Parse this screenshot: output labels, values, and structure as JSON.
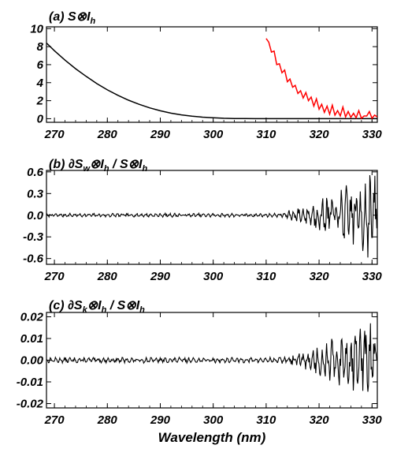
{
  "chart_data": [
    {
      "type": "line",
      "title": {
        "lead": "(a) S",
        "op": "⊗",
        "var": "I",
        "sub": "h"
      },
      "xlim": [
        268.5,
        331
      ],
      "ylim": [
        -0.4,
        10.2
      ],
      "xticks": [
        "270",
        "280",
        "290",
        "300",
        "310",
        "320",
        "330"
      ],
      "yticks": [
        "0",
        "2",
        "4",
        "6",
        "8",
        "10"
      ],
      "series": [
        {
          "color": "#000000",
          "x": [
            268.5,
            270,
            272,
            274,
            276,
            278,
            280,
            282,
            284,
            286,
            288,
            290,
            292,
            294,
            296,
            298,
            300,
            302,
            304,
            306,
            308,
            310,
            312,
            316,
            320,
            325,
            331
          ],
          "y": [
            8.4,
            7.55,
            6.5,
            5.55,
            4.7,
            3.9,
            3.2,
            2.6,
            2.05,
            1.6,
            1.2,
            0.88,
            0.62,
            0.42,
            0.28,
            0.17,
            0.1,
            0.05,
            0.02,
            0.01,
            0.0,
            0.0,
            0.0,
            0.0,
            0.0,
            0.0,
            0.0
          ]
        },
        {
          "color": "#ff0000",
          "x": [
            310,
            310.5,
            311,
            311.5,
            312,
            312.5,
            313,
            313.5,
            314,
            314.5,
            315,
            315.5,
            316,
            316.5,
            317,
            317.5,
            318,
            318.5,
            319,
            319.5,
            320,
            320.5,
            321,
            321.5,
            322,
            322.5,
            323,
            323.5,
            324,
            324.5,
            325,
            325.5,
            326,
            326.5,
            327,
            327.5,
            328,
            328.5,
            329,
            329.5,
            330,
            330.5,
            331
          ],
          "y": [
            8.9,
            8.5,
            7.4,
            7.5,
            6.0,
            6.1,
            5.1,
            5.4,
            4.1,
            4.4,
            3.5,
            3.7,
            2.8,
            3.1,
            2.3,
            2.9,
            2.0,
            2.4,
            1.4,
            2.2,
            1.05,
            1.6,
            0.7,
            1.4,
            0.5,
            1.5,
            0.4,
            0.9,
            0.3,
            1.3,
            0.2,
            0.8,
            0.15,
            0.6,
            0.1,
            0.9,
            0.05,
            0.3,
            0.3,
            0.8,
            0.05,
            0.4,
            0.2
          ]
        }
      ]
    },
    {
      "type": "line",
      "title": {
        "lead": "(b) ∂S",
        "sub1": "w",
        "op": "⊗",
        "var": "I",
        "sub2": "h",
        "tail": " / S",
        "op2": "⊗",
        "var2": "I",
        "sub3": "h"
      },
      "xlim": [
        268.5,
        331
      ],
      "ylim": [
        -0.68,
        0.62
      ],
      "xticks": [
        "270",
        "280",
        "290",
        "300",
        "310",
        "320",
        "330"
      ],
      "yticks": [
        "0.6",
        "0.3",
        "0.0",
        "-0.3",
        "-0.6"
      ],
      "ytick_values": [
        0.6,
        0.3,
        0.0,
        -0.3,
        -0.6
      ],
      "noise": {
        "base": 0.025,
        "growth_start": 312,
        "end_amp": 0.6,
        "period": 0.9,
        "seed": 7
      }
    },
    {
      "type": "line",
      "title": {
        "lead": "(c) ∂S",
        "sub1": "k",
        "op": "⊗",
        "var": "I",
        "sub2": "h",
        "tail": " / S",
        "op2": "⊗",
        "var2": "I",
        "sub3": "h"
      },
      "xlim": [
        268.5,
        331
      ],
      "ylim": [
        -0.022,
        0.022
      ],
      "xticks": [
        "270",
        "280",
        "290",
        "300",
        "310",
        "320",
        "330"
      ],
      "yticks": [
        "0.02",
        "0.01",
        "0.00",
        "-0.01",
        "-0.02"
      ],
      "ytick_values": [
        0.02,
        0.01,
        0.0,
        -0.01,
        -0.02
      ],
      "xlabel": "Wavelength (nm)",
      "noise": {
        "base": 0.0012,
        "growth_start": 312,
        "end_amp": 0.019,
        "period": 0.9,
        "seed": 13
      }
    }
  ]
}
